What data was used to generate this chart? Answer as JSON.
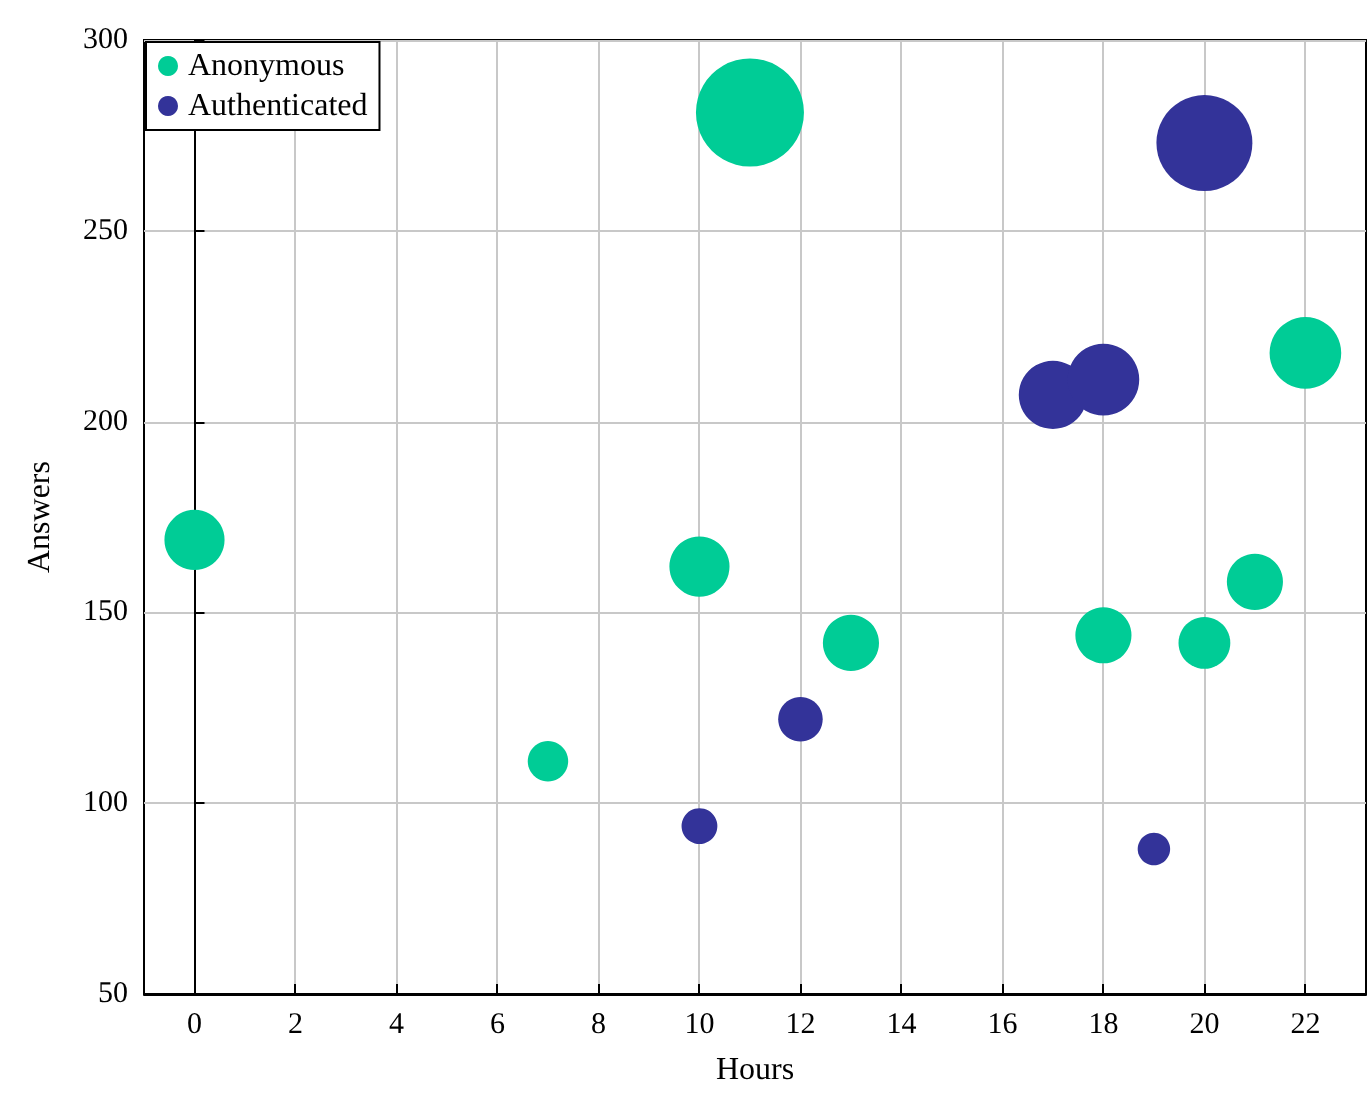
{
  "chart_data": {
    "type": "bubble",
    "xlabel": "Hours",
    "ylabel": "Answers",
    "xlim": [
      -1,
      23.2
    ],
    "xticks": [
      0,
      2,
      4,
      6,
      8,
      10,
      12,
      14,
      16,
      18,
      20,
      22
    ],
    "ylim": [
      50,
      300
    ],
    "yticks": [
      50,
      100,
      150,
      200,
      250,
      300
    ],
    "grid": true,
    "legend": "top left",
    "marker": "circle",
    "series": [
      {
        "name": "Anonymous",
        "color": "#00cc96",
        "x": [
          0,
          7,
          10,
          11,
          13,
          18,
          20,
          21,
          22
        ],
        "values": [
          169,
          111,
          162,
          281,
          142,
          144,
          142,
          158,
          218
        ],
        "sizes": [
          0.31,
          0.14,
          0.31,
          1,
          0.27,
          0.27,
          0.23,
          0.27,
          0.44
        ]
      },
      {
        "name": "Authenticated",
        "color": "#333399",
        "x": [
          10,
          12,
          17,
          18,
          19,
          20
        ],
        "values": [
          94,
          122,
          207,
          211,
          88,
          273
        ],
        "sizes": [
          0.11,
          0.17,
          0.4,
          0.44,
          0.09,
          0.79
        ]
      }
    ]
  }
}
